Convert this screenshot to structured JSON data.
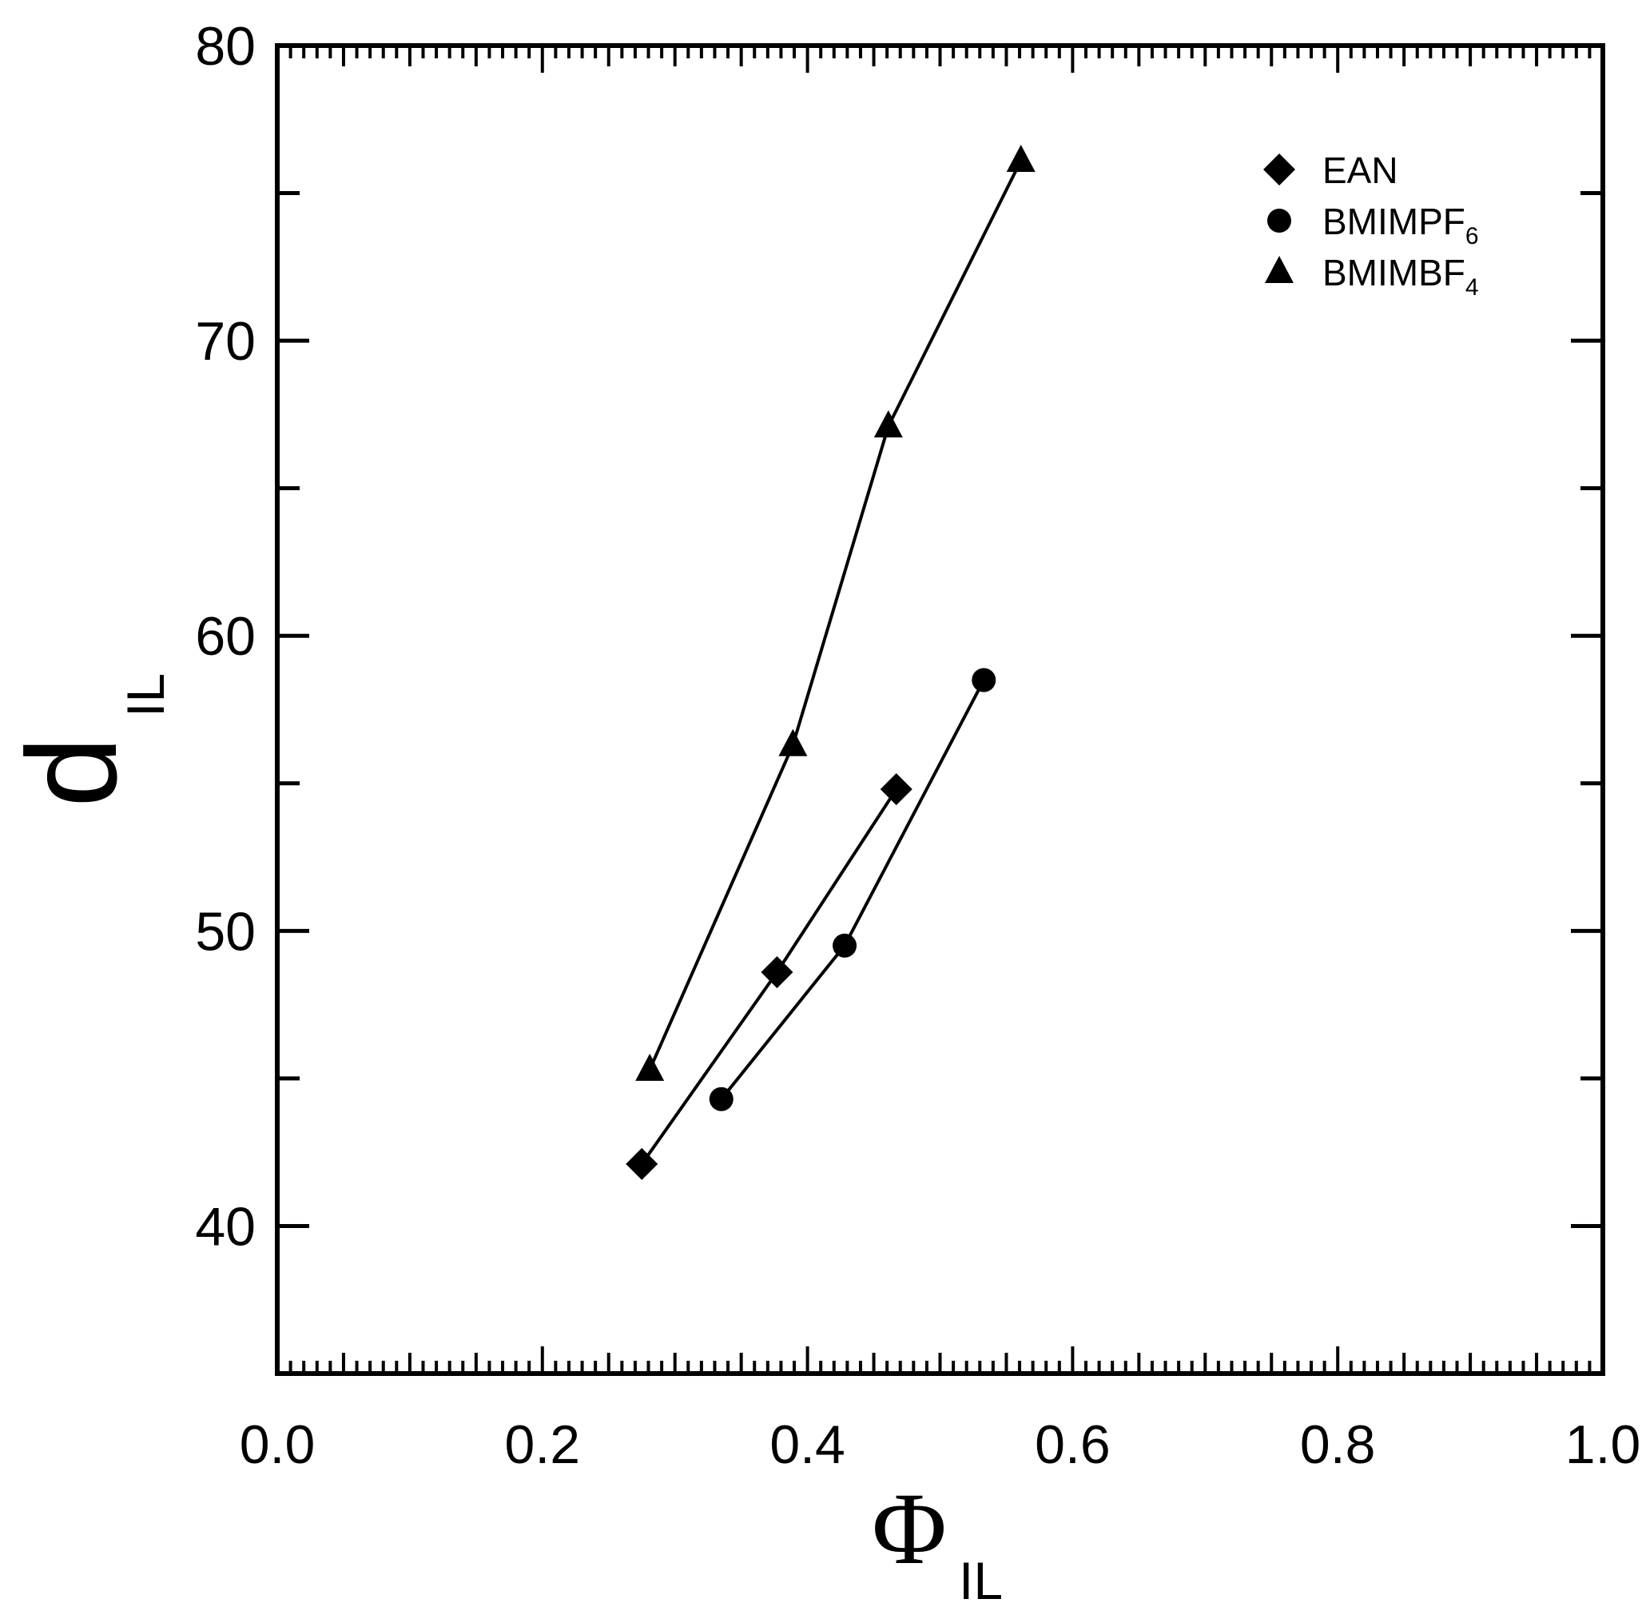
{
  "chart_data": {
    "type": "line",
    "xlabel": {
      "symbol": "Φ",
      "subscript": "IL"
    },
    "ylabel": {
      "symbol": "d",
      "subscript": "IL"
    },
    "xlim": [
      0.0,
      1.0
    ],
    "ylim": [
      35,
      80
    ],
    "x_ticks": [
      "0.0",
      "0.2",
      "0.4",
      "0.6",
      "0.8",
      "1.0"
    ],
    "y_ticks": [
      "40",
      "50",
      "60",
      "70",
      "80"
    ],
    "grid": false,
    "legend_position": "top-right",
    "series": [
      {
        "name": "EAN",
        "name_sub": "",
        "marker": "diamond",
        "x": [
          0.275,
          0.377,
          0.467
        ],
        "y": [
          42.1,
          48.6,
          54.8
        ]
      },
      {
        "name": "BMIMPF",
        "name_sub": "6",
        "marker": "circle",
        "x": [
          0.335,
          0.428,
          0.533
        ],
        "y": [
          44.3,
          49.5,
          58.5
        ]
      },
      {
        "name": "BMIMBF",
        "name_sub": "4",
        "marker": "triangle",
        "x": [
          0.281,
          0.389,
          0.461,
          0.561
        ],
        "y": [
          45.3,
          56.3,
          67.1,
          76.1
        ]
      }
    ]
  }
}
